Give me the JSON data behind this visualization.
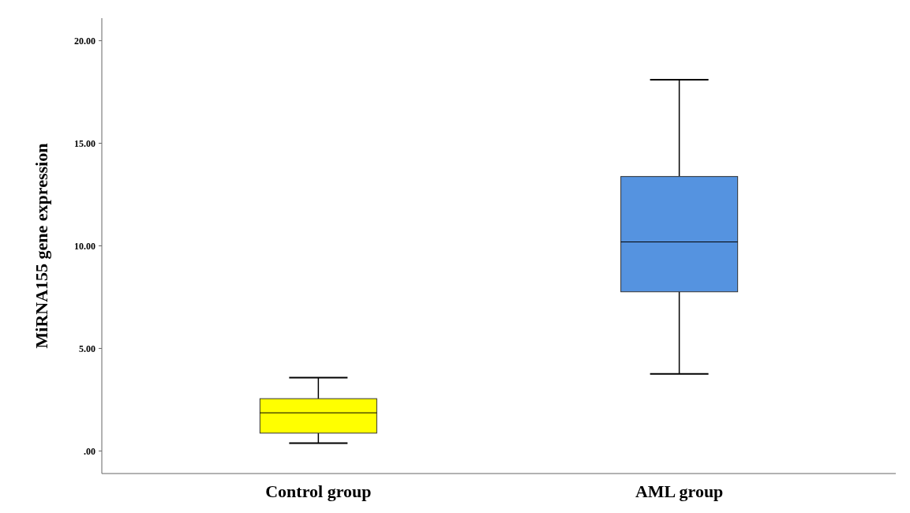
{
  "chart_data": {
    "type": "box",
    "ylabel": "MiRNA155 gene expression",
    "categories": [
      "Control group",
      "AML group"
    ],
    "boxes": [
      {
        "low": 0.38,
        "q1": 0.87,
        "median": 1.86,
        "q3": 2.55,
        "high": 3.57
      },
      {
        "low": 3.76,
        "q1": 7.76,
        "median": 10.19,
        "q3": 13.38,
        "high": 18.1
      }
    ],
    "colors": [
      "#ffff00",
      "#5593e0"
    ],
    "ylim": [
      -1.1,
      21.1
    ],
    "yticks": [
      {
        "value": 0,
        "label": ".00"
      },
      {
        "value": 5,
        "label": "5.00"
      },
      {
        "value": 10,
        "label": "10.00"
      },
      {
        "value": 15,
        "label": "15.00"
      },
      {
        "value": 20,
        "label": "20.00"
      }
    ],
    "grid": false
  }
}
